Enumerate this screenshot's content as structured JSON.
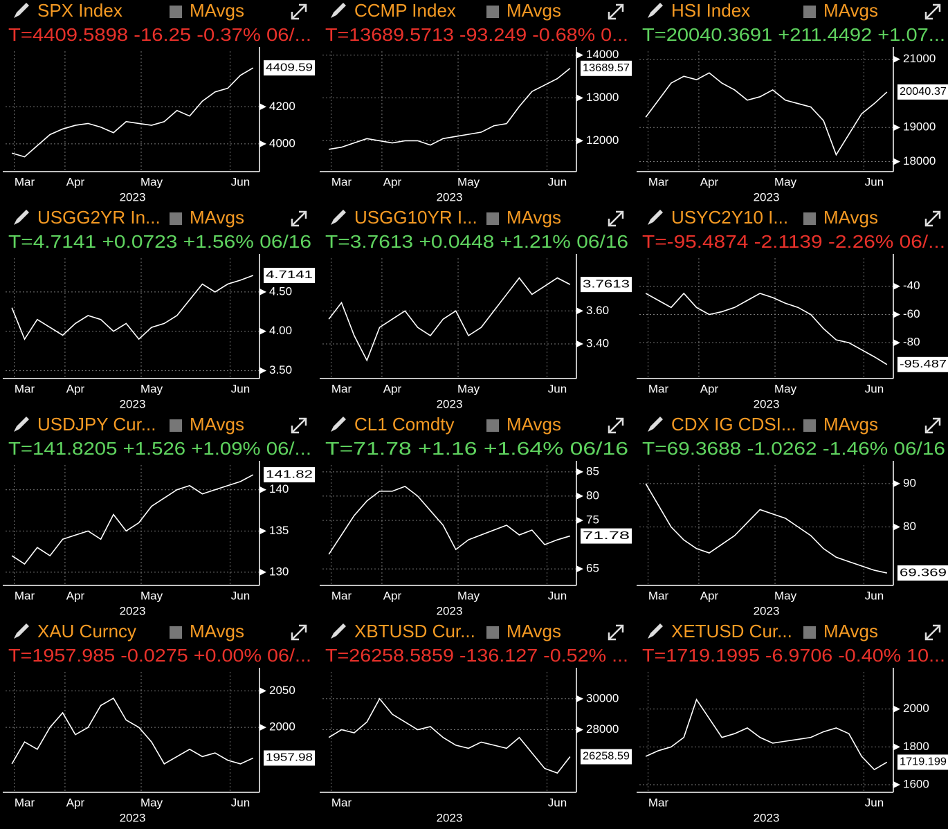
{
  "chart_data": [
    {
      "type": "line",
      "title": "SPX Index",
      "mavgs": "MAvgs",
      "quote": "T=4409.5898 -16.25 -0.37% 06/...",
      "quote_color": "#e8312a",
      "color": "#ffffff",
      "x_label": "2023",
      "categories": [
        null,
        "Mar",
        null,
        null,
        null,
        "Apr",
        null,
        null,
        null,
        null,
        null,
        "May",
        null,
        null,
        null,
        null,
        null,
        null,
        "Jun",
        null
      ],
      "values": [
        3950,
        3930,
        3990,
        4050,
        4080,
        4100,
        4110,
        4090,
        4060,
        4120,
        4110,
        4100,
        4120,
        4180,
        4150,
        4230,
        4280,
        4300,
        4370,
        4410
      ],
      "ylim": [
        3850,
        4500
      ],
      "yticks": [
        4000,
        4200
      ],
      "last_label": "4409.59"
    },
    {
      "type": "line",
      "title": "CCMP Index",
      "mavgs": "MAvgs",
      "quote": "T=13689.5713 -93.249 -0.68% 0...",
      "quote_color": "#e8312a",
      "color": "#ffffff",
      "x_label": "2023",
      "categories": [
        null,
        "Mar",
        null,
        null,
        null,
        "Apr",
        null,
        null,
        null,
        null,
        null,
        "May",
        null,
        null,
        null,
        null,
        null,
        null,
        "Jun",
        null
      ],
      "values": [
        11800,
        11850,
        11950,
        12050,
        12000,
        11950,
        12000,
        12000,
        11900,
        12050,
        12100,
        12150,
        12200,
        12350,
        12400,
        12800,
        13150,
        13300,
        13450,
        13690
      ],
      "ylim": [
        11280,
        14090
      ],
      "yticks": [
        12000,
        13000,
        14000
      ],
      "last_label": "13689.57"
    },
    {
      "type": "line",
      "title": "HSI Index",
      "mavgs": "MAvgs",
      "quote": "T=20040.3691 +211.4492 +1.07...",
      "quote_color": "#5fd35f",
      "color": "#ffffff",
      "x_label": "2023",
      "categories": [
        null,
        "Mar",
        null,
        null,
        null,
        "Apr",
        null,
        null,
        null,
        null,
        null,
        "May",
        null,
        null,
        null,
        null,
        null,
        null,
        "Jun",
        null
      ],
      "values": [
        19300,
        19800,
        20300,
        20500,
        20400,
        20600,
        20300,
        20100,
        19800,
        19900,
        20100,
        19800,
        19700,
        19600,
        19200,
        18200,
        18800,
        19400,
        19700,
        20040
      ],
      "ylim": [
        17706,
        21235
      ],
      "yticks": [
        18000,
        19000,
        21000
      ],
      "last_label": "20040.37"
    },
    {
      "type": "line",
      "title": "USGG2YR In...",
      "mavgs": "MAvgs",
      "quote": "T=4.7141 +0.0723 +1.56% 06/16",
      "quote_color": "#5fd35f",
      "color": "#ffffff",
      "x_label": "2023",
      "categories": [
        null,
        "Mar",
        null,
        null,
        null,
        "Apr",
        null,
        null,
        null,
        null,
        null,
        "May",
        null,
        null,
        null,
        null,
        null,
        null,
        "Jun",
        null
      ],
      "values": [
        4.3,
        3.9,
        4.15,
        4.05,
        3.95,
        4.1,
        4.2,
        4.15,
        4.0,
        4.1,
        3.9,
        4.05,
        4.1,
        4.2,
        4.4,
        4.6,
        4.5,
        4.6,
        4.65,
        4.71
      ],
      "ylim": [
        3.4,
        4.93
      ],
      "yticks": [
        {
          "value": 3.5,
          "label": "3.50"
        },
        {
          "value": 4,
          "label": "4.00"
        },
        {
          "value": 4.5,
          "label": "4.50"
        }
      ],
      "last_label": "4.7141"
    },
    {
      "type": "line",
      "title": "USGG10YR I...",
      "mavgs": "MAvgs",
      "quote": "T=3.7613 +0.0448 +1.21% 06/16",
      "quote_color": "#5fd35f",
      "color": "#ffffff",
      "x_label": "2023",
      "categories": [
        null,
        "Mar",
        null,
        null,
        null,
        "Apr",
        null,
        null,
        null,
        null,
        null,
        "May",
        null,
        null,
        null,
        null,
        null,
        null,
        "Jun",
        null
      ],
      "values": [
        3.55,
        3.65,
        3.45,
        3.3,
        3.5,
        3.55,
        3.6,
        3.5,
        3.45,
        3.55,
        3.6,
        3.45,
        3.5,
        3.6,
        3.7,
        3.8,
        3.7,
        3.75,
        3.8,
        3.76
      ],
      "ylim": [
        3.19,
        3.92
      ],
      "yticks": [
        {
          "value": 3.4,
          "label": "3.40"
        },
        {
          "value": 3.6,
          "label": "3.60"
        }
      ],
      "last_label": "3.7613"
    },
    {
      "type": "line",
      "title": "USYC2Y10 I...",
      "mavgs": "MAvgs",
      "quote": "T=-95.4874 -2.1139 -2.26% 06/...",
      "quote_color": "#e8312a",
      "color": "#ffffff",
      "x_label": "2023",
      "categories": [
        null,
        "Mar",
        null,
        null,
        null,
        "Apr",
        null,
        null,
        null,
        null,
        null,
        "May",
        null,
        null,
        null,
        null,
        null,
        null,
        "Jun",
        null
      ],
      "values": [
        -45,
        -50,
        -55,
        -45,
        -55,
        -60,
        -58,
        -55,
        -50,
        -45,
        -48,
        -52,
        -55,
        -60,
        -70,
        -78,
        -80,
        -85,
        -90,
        -95.49
      ],
      "ylim": [
        -105.4,
        -20
      ],
      "yticks": [
        -40,
        -60,
        -80
      ],
      "last_label": "-95.487"
    },
    {
      "type": "line",
      "title": "USDJPY Cur...",
      "mavgs": "MAvgs",
      "quote": "T=141.8205 +1.526 +1.09% 06/...",
      "quote_color": "#5fd35f",
      "color": "#ffffff",
      "x_label": "2023",
      "categories": [
        null,
        "Mar",
        null,
        null,
        null,
        "Apr",
        null,
        null,
        null,
        null,
        null,
        "May",
        null,
        null,
        null,
        null,
        null,
        null,
        "Jun",
        null
      ],
      "values": [
        132,
        131,
        133,
        132,
        134,
        134.5,
        135,
        134,
        137,
        135,
        136,
        138,
        139,
        140,
        140.5,
        139.5,
        140,
        140.5,
        141,
        141.82
      ],
      "ylim": [
        128.4,
        143
      ],
      "yticks": [
        130,
        135,
        140
      ],
      "last_label": "141.82"
    },
    {
      "type": "line",
      "title": "CL1 Comdty",
      "mavgs": "MAvgs",
      "quote": "T=71.78 +1.16 +1.64% 06/16",
      "quote_color": "#5fd35f",
      "color": "#ffffff",
      "x_label": "2023",
      "categories": [
        null,
        "Mar",
        null,
        null,
        null,
        "Apr",
        null,
        null,
        null,
        null,
        null,
        "May",
        null,
        null,
        null,
        null,
        null,
        null,
        "Jun",
        null
      ],
      "values": [
        68,
        72,
        76,
        79,
        81,
        81,
        82,
        80,
        77,
        74,
        69,
        71,
        72,
        73,
        74,
        72,
        73,
        70,
        71,
        71.78
      ],
      "ylim": [
        61.6,
        86.4
      ],
      "yticks": [
        65,
        75,
        80,
        85
      ],
      "last_label": "71.78"
    },
    {
      "type": "line",
      "title": "CDX IG CDSI...",
      "mavgs": "MAvgs",
      "quote": "T=69.3688 -1.0262 -1.46% 06/16",
      "quote_color": "#5fd35f",
      "color": "#ffffff",
      "x_label": "2023",
      "categories": [
        null,
        "Mar",
        null,
        null,
        null,
        "Apr",
        null,
        null,
        null,
        null,
        null,
        "May",
        null,
        null,
        null,
        null,
        null,
        null,
        "Jun",
        null
      ],
      "values": [
        90,
        85,
        80,
        77,
        75,
        74,
        76,
        78,
        81,
        84,
        83,
        82,
        80,
        78,
        75,
        73,
        72,
        71,
        70,
        69.37
      ],
      "ylim": [
        66.5,
        94.3
      ],
      "yticks": [
        80,
        90
      ],
      "last_label": "69.369"
    },
    {
      "type": "line",
      "title": "XAU Curncy",
      "mavgs": "MAvgs",
      "quote": "T=1957.985 -0.0275 +0.00% 06/...",
      "quote_color": "#e8312a",
      "color": "#ffffff",
      "x_label": "2023",
      "categories": [
        null,
        "Mar",
        null,
        null,
        null,
        "Apr",
        null,
        null,
        null,
        null,
        null,
        "May",
        null,
        null,
        null,
        null,
        null,
        null,
        "Jun",
        null
      ],
      "values": [
        1950,
        1980,
        1970,
        2000,
        2020,
        1990,
        2000,
        2030,
        2040,
        2010,
        2000,
        1980,
        1950,
        1960,
        1970,
        1960,
        1965,
        1955,
        1950,
        1957.98
      ],
      "ylim": [
        1911,
        2076
      ],
      "yticks": [
        2000,
        2050
      ],
      "last_label": "1957.98"
    },
    {
      "type": "line",
      "title": "XBTUSD Cur...",
      "mavgs": "MAvgs",
      "quote": "T=26258.5859 -136.127 -0.52% ...",
      "quote_color": "#e8312a",
      "color": "#ffffff",
      "x_label": "2023",
      "categories": [
        null,
        "Mar",
        null,
        null,
        null,
        null,
        null,
        null,
        null,
        null,
        null,
        null,
        null,
        null,
        null,
        null,
        null,
        null,
        "Jun",
        null
      ],
      "values": [
        27500,
        28000,
        27800,
        28500,
        30000,
        29000,
        28500,
        28000,
        28200,
        27500,
        27000,
        26800,
        27200,
        27000,
        26800,
        27500,
        26500,
        25500,
        25200,
        26258.59
      ],
      "ylim": [
        23956,
        31733
      ],
      "yticks": [
        28000,
        30000
      ],
      "last_label": "26258.59"
    },
    {
      "type": "line",
      "title": "XETUSD Cur...",
      "mavgs": "MAvgs",
      "quote": "T=1719.1995 -6.9706 -0.40% 10...",
      "quote_color": "#e8312a",
      "color": "#ffffff",
      "x_label": "2023",
      "categories": [
        null,
        "Mar",
        null,
        null,
        null,
        null,
        null,
        null,
        null,
        null,
        null,
        null,
        null,
        null,
        null,
        null,
        null,
        null,
        "Jun",
        null
      ],
      "values": [
        1750,
        1780,
        1800,
        1850,
        2050,
        1950,
        1850,
        1870,
        1900,
        1850,
        1820,
        1830,
        1840,
        1850,
        1880,
        1900,
        1870,
        1750,
        1680,
        1719.2
      ],
      "ylim": [
        1560,
        2196
      ],
      "yticks": [
        1600,
        1800,
        2000
      ],
      "last_label": "1719.199"
    }
  ]
}
